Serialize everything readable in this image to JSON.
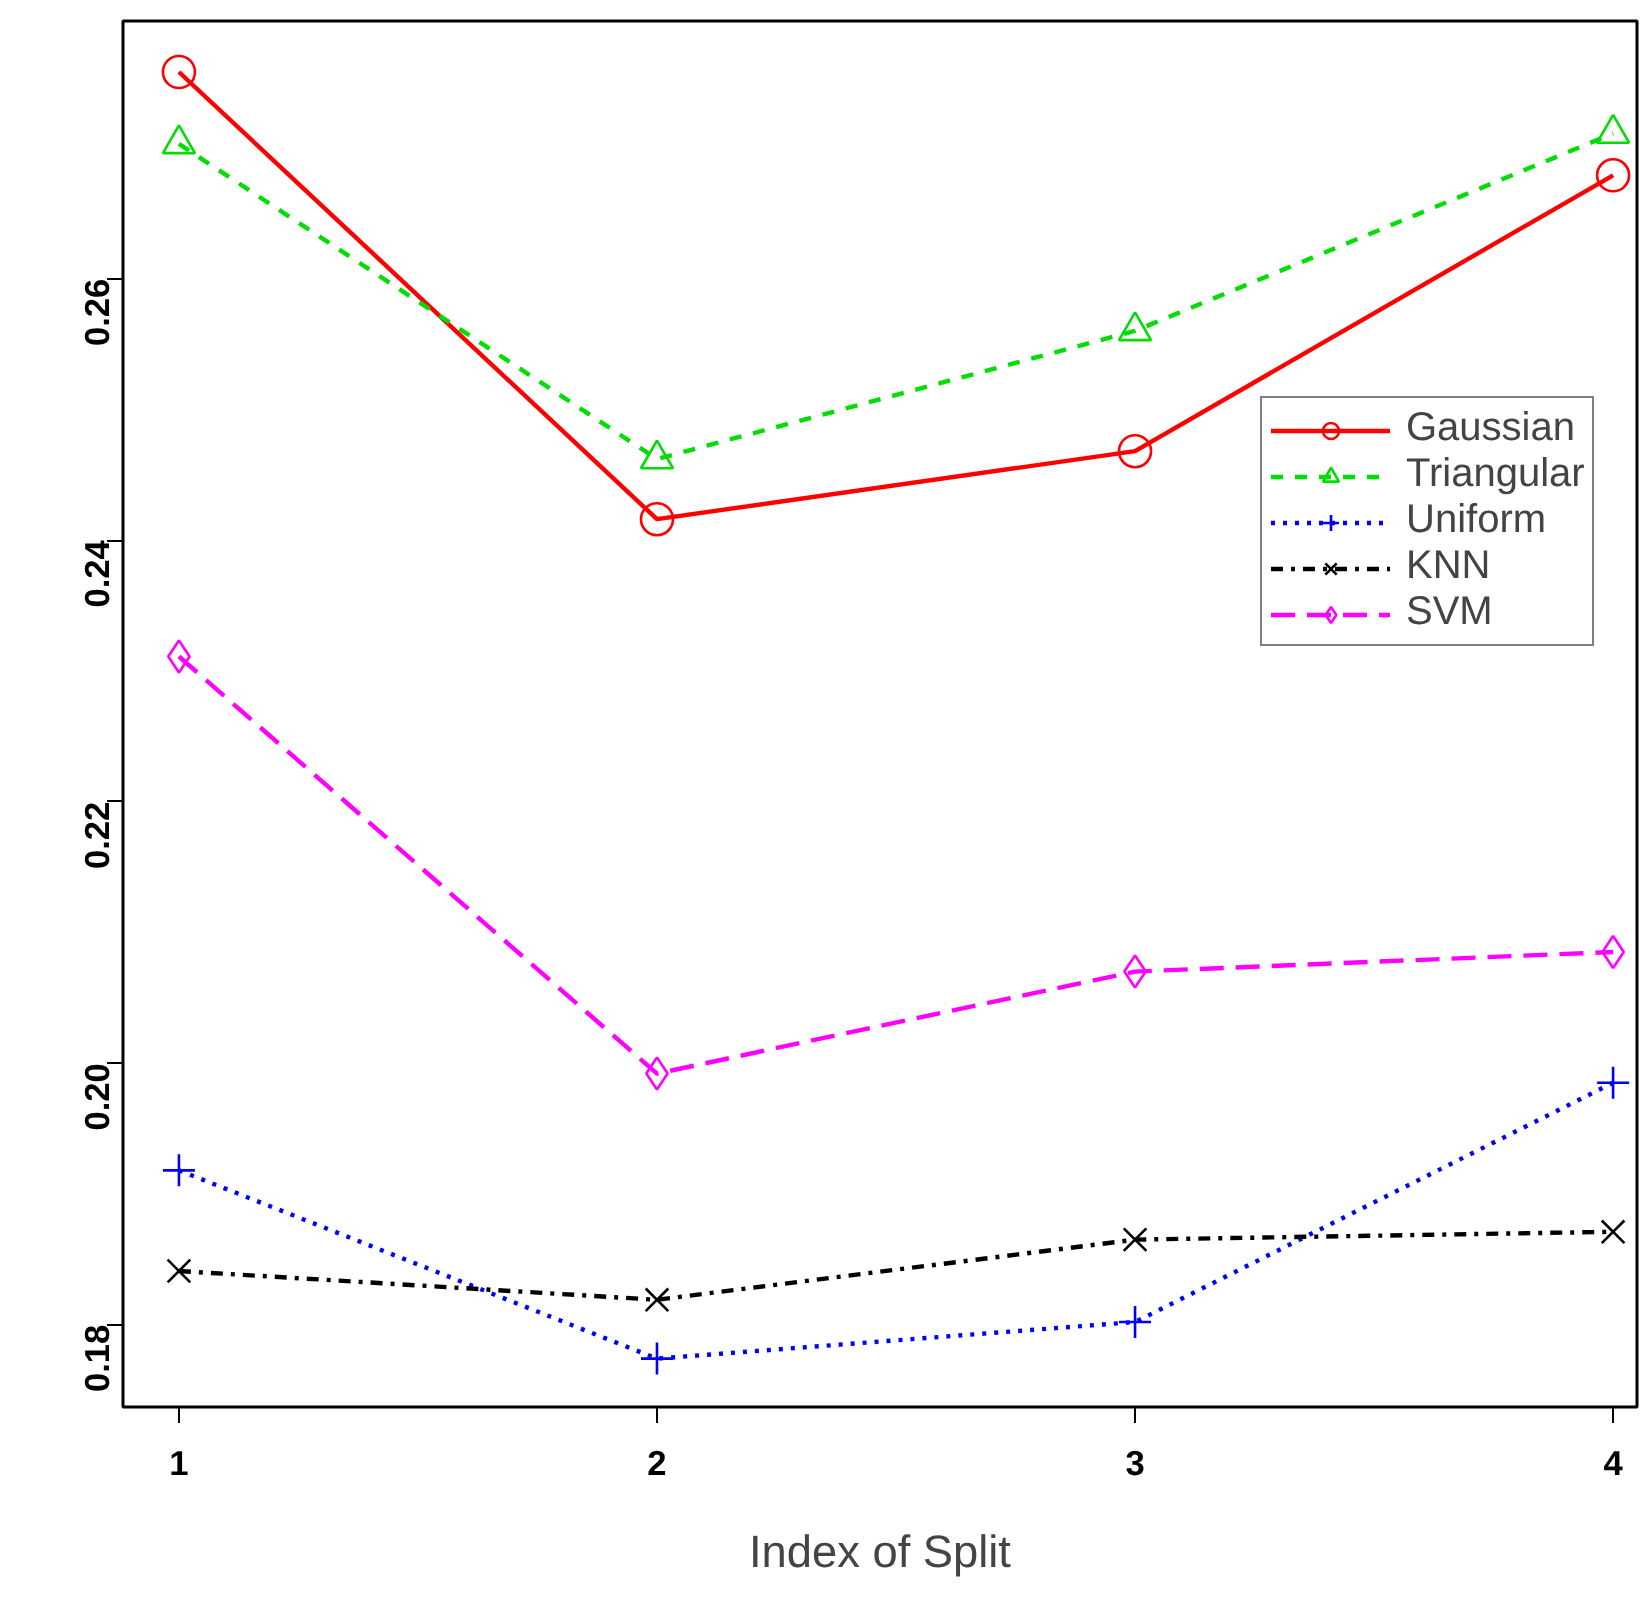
{
  "chart_data": {
    "type": "line",
    "xlabel": "Index of Split",
    "x": [
      1,
      2,
      3,
      4
    ],
    "xlim": [
      0.883,
      4.05
    ],
    "ylim": [
      0.1737,
      0.2797
    ],
    "xticks": [
      1,
      2,
      3,
      4
    ],
    "yticks": [
      0.18,
      {
        "value": 0.2,
        "label": "0.20"
      },
      0.22,
      0.24,
      0.26
    ],
    "grid": false,
    "legend": "right",
    "series": [
      {
        "name": "Gaussian",
        "color": "#ff0000",
        "values": [
          0.2758,
          0.2416,
          0.2468,
          0.2679
        ],
        "marker": "circle",
        "line_style": "solid"
      },
      {
        "name": "Triangular",
        "color": "#00dd00",
        "values": [
          0.2703,
          0.2462,
          0.256,
          0.2711
        ],
        "marker": "triangle",
        "line_style": "dashed"
      },
      {
        "name": "Uniform",
        "color": "#0000ff",
        "values": [
          0.1918,
          0.1774,
          0.1802,
          0.1985
        ],
        "marker": "cross",
        "line_style": "dotted"
      },
      {
        "name": "KNN",
        "color": "#000000",
        "values": [
          0.1841,
          0.1819,
          0.1865,
          0.1871
        ],
        "marker": "x",
        "line_style": "dashdot"
      },
      {
        "name": "SVM",
        "color": "#ff00ff",
        "values": [
          0.2311,
          0.1992,
          0.207,
          0.2085
        ],
        "marker": "diamond",
        "line_style": "longdash"
      }
    ]
  }
}
